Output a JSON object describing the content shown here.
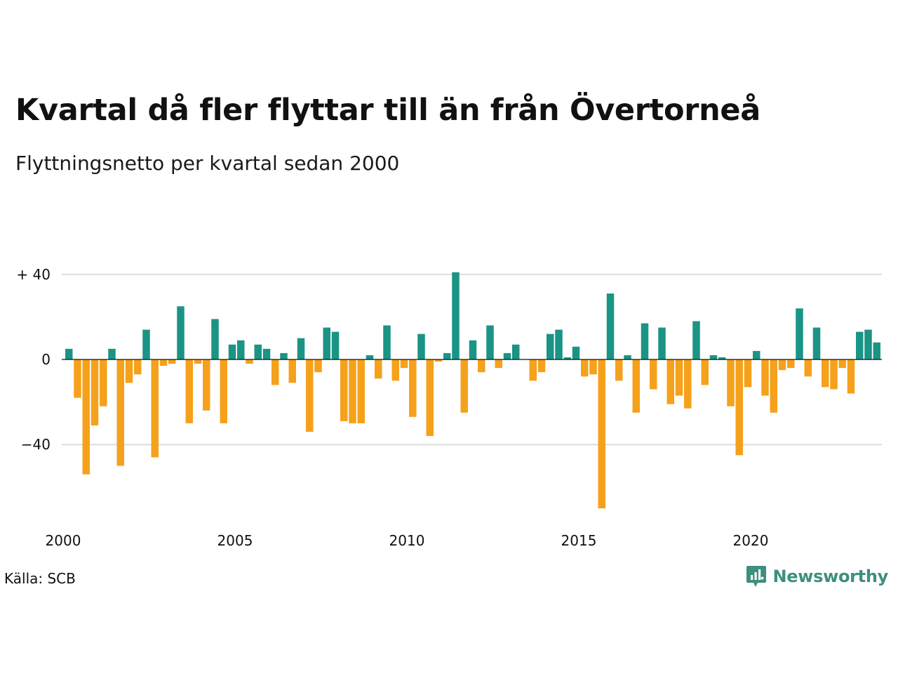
{
  "title": "Kvartal då fler flyttar till än från Övertorneå",
  "subtitle": "Flyttningsnetto per kvartal sedan 2000",
  "source": "Källa: SCB",
  "brand": {
    "name": "Newsworthy",
    "icon": "newsworthy-logo-icon"
  },
  "colors": {
    "positive": "#1a9485",
    "negative": "#f5a11c",
    "grid": "#dddddd",
    "zero": "#111111"
  },
  "chart_data": {
    "type": "bar",
    "title": "Kvartal då fler flyttar till än från Övertorneå",
    "subtitle": "Flyttningsnetto per kvartal sedan 2000",
    "xlabel": "",
    "ylabel": "",
    "x_start": "2000 Q1",
    "quarters_per_year": 4,
    "ylim": [
      -72,
      42
    ],
    "grid": true,
    "y_ticks": [
      {
        "value": 40,
        "label": "+ 40"
      },
      {
        "value": 0,
        "label": "0"
      },
      {
        "value": -40,
        "label": "−40"
      }
    ],
    "x_ticks": [
      {
        "year": 2000,
        "label": "2000"
      },
      {
        "year": 2005,
        "label": "2005"
      },
      {
        "year": 2010,
        "label": "2010"
      },
      {
        "year": 2015,
        "label": "2015"
      },
      {
        "year": 2020,
        "label": "2020"
      }
    ],
    "values": [
      5,
      -18,
      -54,
      -31,
      -22,
      5,
      -50,
      -11,
      -7,
      14,
      -46,
      -3,
      -2,
      25,
      -30,
      -2,
      -24,
      19,
      -30,
      7,
      9,
      -2,
      7,
      5,
      -12,
      3,
      -11,
      10,
      -34,
      -6,
      15,
      13,
      -29,
      -30,
      -30,
      2,
      -9,
      16,
      -10,
      -4,
      -27,
      12,
      -36,
      -1,
      3,
      41,
      -25,
      9,
      -6,
      16,
      -4,
      3,
      7,
      0,
      -10,
      -6,
      12,
      14,
      1,
      6,
      -8,
      -7,
      -70,
      31,
      -10,
      2,
      -25,
      17,
      -14,
      15,
      -21,
      -17,
      -23,
      18,
      -12,
      2,
      1,
      -22,
      -45,
      -13,
      4,
      -17,
      -25,
      -5,
      -4,
      24,
      -8,
      15,
      -13,
      -14,
      -4,
      -16,
      13,
      14,
      8
    ]
  }
}
